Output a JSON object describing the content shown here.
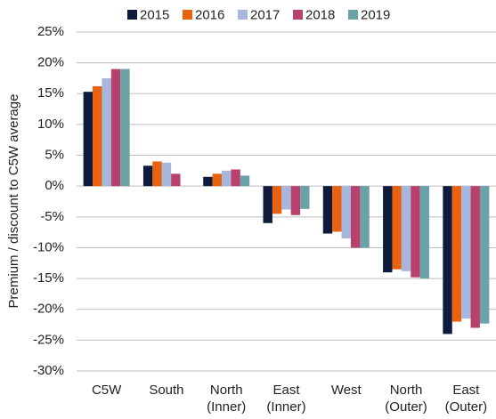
{
  "chart_data": {
    "type": "bar",
    "y_label": "Premium / discount to C5W average",
    "categories": [
      "C5W",
      "South",
      "North (Inner)",
      "East (Inner)",
      "West",
      "North (Outer)",
      "East (Outer)"
    ],
    "series": [
      {
        "name": "2015",
        "color": "#0e1b3d",
        "values": [
          15.3,
          3.3,
          1.5,
          -6,
          -7.7,
          -14,
          -24
        ]
      },
      {
        "name": "2016",
        "color": "#e8620f",
        "values": [
          16.2,
          4,
          2,
          -4.5,
          -7.4,
          -13.5,
          -22
        ]
      },
      {
        "name": "2017",
        "color": "#a7b6dd",
        "values": [
          17.5,
          3.8,
          2.5,
          -3.8,
          -8.5,
          -13.8,
          -21.5
        ]
      },
      {
        "name": "2018",
        "color": "#b8406d",
        "values": [
          19,
          2,
          2.7,
          -4.7,
          -10,
          -14.8,
          -23
        ]
      },
      {
        "name": "2019",
        "color": "#6ba2a6",
        "values": [
          19,
          0,
          1.7,
          -3.7,
          -10,
          -15,
          -22.3
        ]
      }
    ],
    "ylim": [
      -30,
      25
    ],
    "yticks": [
      {
        "value": -30,
        "label": "-30%"
      },
      {
        "value": -25,
        "label": "-25%"
      },
      {
        "value": -20,
        "label": "-20%"
      },
      {
        "value": -15,
        "label": "-15%"
      },
      {
        "value": -10,
        "label": "-10%"
      },
      {
        "value": -5,
        "label": "-5%"
      },
      {
        "value": 0,
        "label": "0%"
      },
      {
        "value": 5,
        "label": "5%"
      },
      {
        "value": 10,
        "label": "10%"
      },
      {
        "value": 15,
        "label": "15%"
      },
      {
        "value": 20,
        "label": "20%"
      },
      {
        "value": 25,
        "label": "25%"
      }
    ],
    "grid": true
  }
}
